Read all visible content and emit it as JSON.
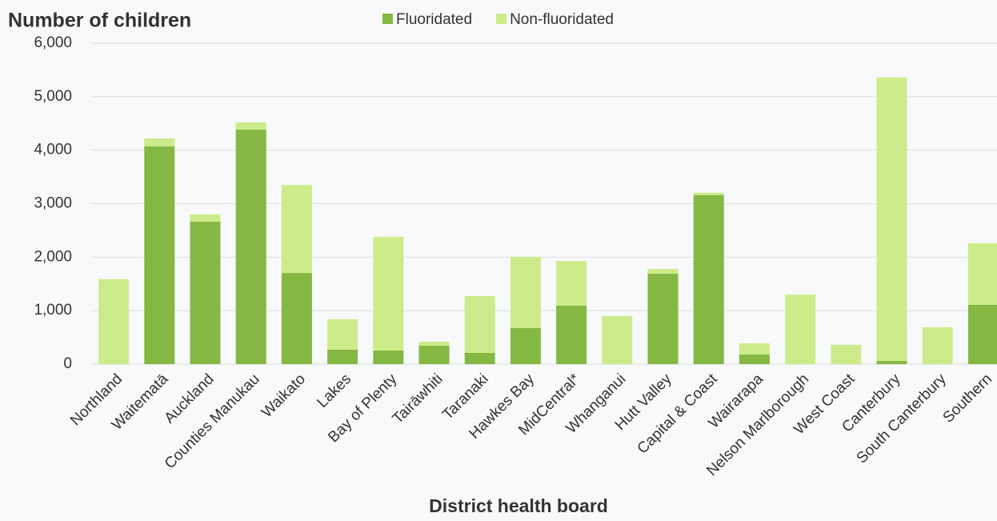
{
  "chart_data": {
    "type": "stacked_bar",
    "title": "Number of children",
    "x_label": "District health board",
    "categories": [
      "Northland",
      "Waitematā",
      "Auckland",
      "Counties Manukau",
      "Waikato",
      "Lakes",
      "Bay of Plenty",
      "Tairāwhiti",
      "Taranaki",
      "Hawkes Bay",
      "MidCentral*",
      "Whanganui",
      "Hutt Valley",
      "Capital & Coast",
      "Wairarapa",
      "Nelson Marlborough",
      "West Coast",
      "Canterbury",
      "South Canterbury",
      "Southern"
    ],
    "series": [
      {
        "name": "Fluoridated",
        "color": "#84b843",
        "values": [
          0,
          4070,
          2665,
          4385,
          1705,
          270,
          255,
          345,
          210,
          675,
          1095,
          0,
          1690,
          3160,
          180,
          0,
          0,
          60,
          0,
          1110
        ]
      },
      {
        "name": "Non-fluoridated",
        "color": "#cdeb8b",
        "values": [
          1590,
          150,
          135,
          135,
          1645,
          570,
          2125,
          75,
          1065,
          1330,
          835,
          900,
          90,
          45,
          210,
          1300,
          360,
          5300,
          690,
          1150
        ]
      }
    ],
    "ylim": [
      0,
      6000
    ],
    "yticks": [
      0,
      {
        "value": 1000,
        "label": "1,000"
      },
      {
        "value": 2000,
        "label": "2,000"
      },
      {
        "value": 3000,
        "label": "3,000"
      },
      {
        "value": 4000,
        "label": "4,000"
      },
      {
        "value": 5000,
        "label": "5,000"
      },
      {
        "value": 6000,
        "label": "6,000"
      }
    ],
    "grid": true,
    "legend": "top"
  }
}
